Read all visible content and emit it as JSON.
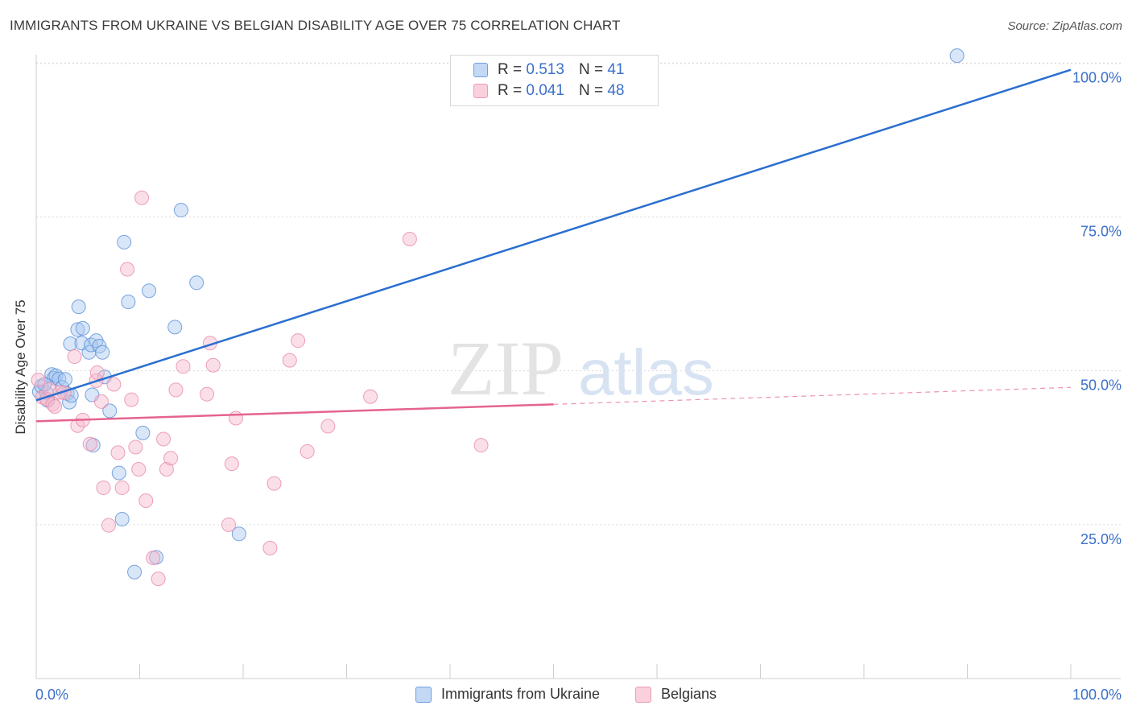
{
  "header": {
    "title": "IMMIGRANTS FROM UKRAINE VS BELGIAN DISABILITY AGE OVER 75 CORRELATION CHART",
    "source": "Source: ZipAtlas.com"
  },
  "legend": {
    "rows": [
      {
        "r_label": "R =",
        "r_value": "0.513",
        "n_label": "N =",
        "n_value": "41"
      },
      {
        "r_label": "R =",
        "r_value": "0.041",
        "n_label": "N =",
        "n_value": "48"
      }
    ]
  },
  "watermark": {
    "zip": "ZIP",
    "atlas": "atlas"
  },
  "colors": {
    "blue_fill": "#a9c8f0",
    "blue_stroke": "#5a8fd8",
    "blue_line": "#2a6fd0",
    "pink_fill": "#f7b8cc",
    "pink_stroke": "#e98aa8",
    "pink_line": "#e5638f",
    "axis_label": "#3b6fc8",
    "grid": "#dcdcdc"
  },
  "chart_data": {
    "type": "scatter",
    "title": "IMMIGRANTS FROM UKRAINE VS BELGIAN DISABILITY AGE OVER 75 CORRELATION CHART",
    "xlabel": "",
    "ylabel": "Disability Age Over 75",
    "xlim": [
      0,
      100
    ],
    "ylim": [
      0,
      102
    ],
    "x_tick_labels": [
      "0.0%",
      "100.0%"
    ],
    "y_ticks": [
      25,
      50,
      75,
      100
    ],
    "y_tick_labels": [
      "25.0%",
      "50.0%",
      "75.0%",
      "100.0%"
    ],
    "grid": true,
    "legend_position": "top-center",
    "series": [
      {
        "name": "Immigrants from Ukraine",
        "color": "blue",
        "r": 0.513,
        "n": 41,
        "trend": {
          "x0": 0,
          "y0": 45.2,
          "x1": 100,
          "y1": 98.9,
          "dashed_from": null
        },
        "points": [
          [
            0.3,
            46.6
          ],
          [
            0.5,
            47.5
          ],
          [
            1.0,
            46.4
          ],
          [
            1.1,
            45.2
          ],
          [
            1.5,
            49.4
          ],
          [
            1.7,
            48.8
          ],
          [
            1.9,
            49.2
          ],
          [
            2.2,
            48.7
          ],
          [
            2.5,
            47.3
          ],
          [
            2.8,
            48.6
          ],
          [
            3.0,
            46.3
          ],
          [
            3.2,
            44.9
          ],
          [
            3.3,
            54.4
          ],
          [
            3.4,
            46.0
          ],
          [
            4.1,
            60.4
          ],
          [
            4.0,
            56.7
          ],
          [
            4.5,
            56.9
          ],
          [
            4.4,
            54.5
          ],
          [
            5.1,
            53.0
          ],
          [
            5.3,
            54.2
          ],
          [
            5.8,
            54.9
          ],
          [
            6.1,
            54.0
          ],
          [
            6.4,
            53.0
          ],
          [
            6.6,
            49.0
          ],
          [
            7.1,
            43.5
          ],
          [
            5.4,
            46.1
          ],
          [
            5.5,
            37.9
          ],
          [
            8.0,
            33.4
          ],
          [
            8.3,
            25.9
          ],
          [
            8.5,
            70.9
          ],
          [
            8.9,
            61.2
          ],
          [
            9.5,
            17.3
          ],
          [
            10.3,
            39.9
          ],
          [
            10.9,
            63.0
          ],
          [
            11.6,
            19.7
          ],
          [
            13.4,
            57.1
          ],
          [
            14.0,
            76.1
          ],
          [
            15.5,
            64.3
          ],
          [
            19.6,
            23.5
          ],
          [
            89.0,
            101.2
          ],
          [
            0.8,
            47.8
          ]
        ]
      },
      {
        "name": "Belgians",
        "color": "pink",
        "r": 0.041,
        "n": 48,
        "trend": {
          "x0": 0,
          "y0": 41.8,
          "x1": 100,
          "y1": 47.3,
          "dashed_from": 50
        },
        "points": [
          [
            0.2,
            48.5
          ],
          [
            0.6,
            45.7
          ],
          [
            1.0,
            45.4
          ],
          [
            1.3,
            47.0
          ],
          [
            1.6,
            44.6
          ],
          [
            1.8,
            44.2
          ],
          [
            2.3,
            46.5
          ],
          [
            2.7,
            46.4
          ],
          [
            3.7,
            52.3
          ],
          [
            4.0,
            41.1
          ],
          [
            4.5,
            42.0
          ],
          [
            5.2,
            38.1
          ],
          [
            5.8,
            48.4
          ],
          [
            5.9,
            49.7
          ],
          [
            6.3,
            45.0
          ],
          [
            6.5,
            31.0
          ],
          [
            7.0,
            24.9
          ],
          [
            7.5,
            47.8
          ],
          [
            7.9,
            36.7
          ],
          [
            8.3,
            31.0
          ],
          [
            8.8,
            66.5
          ],
          [
            9.2,
            45.3
          ],
          [
            9.6,
            37.6
          ],
          [
            9.9,
            34.0
          ],
          [
            10.2,
            78.1
          ],
          [
            10.6,
            28.9
          ],
          [
            11.3,
            19.6
          ],
          [
            11.8,
            16.2
          ],
          [
            12.3,
            38.9
          ],
          [
            12.6,
            34.0
          ],
          [
            13.0,
            35.8
          ],
          [
            13.5,
            46.9
          ],
          [
            14.2,
            50.7
          ],
          [
            16.5,
            46.2
          ],
          [
            16.8,
            54.5
          ],
          [
            18.6,
            25.0
          ],
          [
            18.9,
            34.9
          ],
          [
            19.3,
            42.3
          ],
          [
            22.6,
            21.2
          ],
          [
            23.0,
            31.7
          ],
          [
            24.5,
            51.7
          ],
          [
            25.3,
            54.9
          ],
          [
            26.2,
            36.9
          ],
          [
            28.2,
            41.0
          ],
          [
            32.3,
            45.8
          ],
          [
            36.1,
            71.4
          ],
          [
            43.0,
            37.9
          ],
          [
            17.1,
            50.9
          ]
        ]
      }
    ]
  },
  "bottom_legend": {
    "items": [
      {
        "label": "Immigrants from Ukraine"
      },
      {
        "label": "Belgians"
      }
    ]
  }
}
